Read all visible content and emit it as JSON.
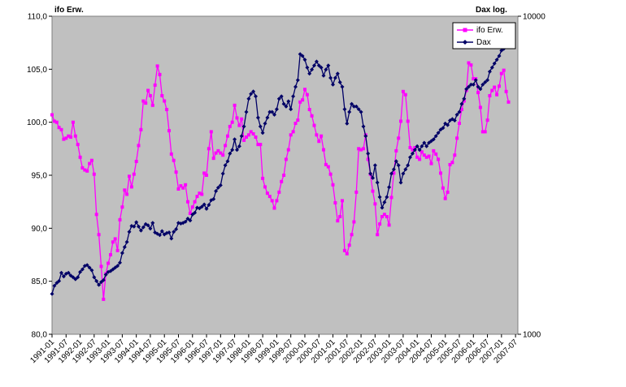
{
  "chart_data": {
    "type": "line",
    "left_axis_title": "ifo Erw.",
    "right_axis_title": "Dax log.",
    "left_ylim": [
      80,
      110
    ],
    "left_ticks": [
      "80,0",
      "85,0",
      "90,0",
      "95,0",
      "100,0",
      "105,0",
      "110,0"
    ],
    "right_ylim": [
      1000,
      10000
    ],
    "right_scale": "log",
    "right_ticks": [
      "1000",
      "10000"
    ],
    "x_tick_labels": [
      "1991-01",
      "1991-07",
      "1992-01",
      "1992-07",
      "1993-01",
      "1993-07",
      "1994-01",
      "1994-07",
      "1995-01",
      "1995-07",
      "1996-01",
      "1996-07",
      "1997-01",
      "1997-07",
      "1998-01",
      "1998-07",
      "1999-01",
      "1999-07",
      "2000-01",
      "2000-07",
      "2001-01",
      "2001-07",
      "2002-01",
      "2002-07",
      "2003-01",
      "2003-07",
      "2004-01",
      "2004-07",
      "2005-01",
      "2005-07",
      "2006-01",
      "2006-07",
      "2007-01",
      "2007-07"
    ],
    "grid": false,
    "legend_position": "top-right",
    "background": "#c0c0c0",
    "series": [
      {
        "name": "ifo Erw.",
        "axis": "left",
        "color": "#ff00ff",
        "marker": "square",
        "start": "1991-01",
        "values": [
          100.7,
          100.1,
          100.0,
          99.5,
          99.3,
          98.4,
          98.5,
          98.7,
          98.6,
          100.0,
          98.7,
          97.9,
          96.7,
          95.7,
          95.5,
          95.4,
          96.1,
          96.4,
          95.1,
          91.3,
          89.4,
          86.4,
          83.3,
          85.7,
          86.7,
          87.5,
          88.7,
          89.0,
          87.9,
          90.8,
          92.0,
          93.6,
          93.2,
          94.9,
          93.9,
          95.1,
          96.3,
          97.8,
          99.3,
          102.0,
          101.8,
          103.0,
          102.5,
          101.6,
          103.5,
          105.3,
          104.5,
          102.5,
          102.0,
          101.2,
          99.2,
          97.0,
          96.4,
          95.3,
          93.7,
          94.0,
          93.8,
          94.1,
          92.5,
          91.4,
          92.0,
          92.5,
          93.0,
          93.3,
          93.2,
          95.2,
          95.0,
          97.5,
          99.1,
          96.6,
          97.1,
          97.3,
          97.1,
          96.9,
          97.8,
          98.7,
          99.6,
          100.0,
          101.6,
          100.4,
          99.7,
          100.3,
          98.3,
          98.6,
          98.8,
          99.1,
          98.9,
          98.6,
          97.9,
          97.9,
          94.7,
          93.9,
          93.3,
          93.0,
          92.6,
          91.9,
          92.6,
          93.4,
          94.4,
          95.0,
          96.5,
          97.4,
          98.8,
          99.1,
          99.9,
          100.2,
          101.9,
          102.1,
          103.1,
          102.6,
          101.2,
          100.6,
          99.7,
          98.8,
          98.2,
          98.7,
          97.4,
          96.0,
          95.8,
          95.1,
          94.1,
          92.4,
          90.7,
          91.1,
          92.6,
          87.9,
          87.6,
          88.4,
          89.4,
          90.6,
          93.4,
          97.5,
          97.4,
          97.5,
          98.8,
          96.5,
          95.1,
          93.5,
          92.3,
          89.4,
          90.4,
          91.1,
          91.3,
          91.1,
          90.3,
          92.9,
          95.2,
          97.3,
          98.5,
          100.1,
          102.9,
          102.6,
          100.1,
          97.6,
          97.4,
          97.6,
          96.7,
          96.5,
          97.2,
          96.9,
          96.7,
          96.8,
          96.1,
          97.3,
          97.0,
          96.5,
          95.2,
          93.8,
          92.8,
          93.4,
          96.0,
          96.2,
          96.9,
          98.5,
          99.9,
          101.2,
          102.0,
          103.0,
          105.6,
          105.4,
          104.1,
          104.1,
          102.8,
          101.4,
          99.1,
          99.1,
          100.2,
          102.5,
          103.0,
          103.3,
          102.6,
          103.4,
          104.6,
          104.9,
          102.9,
          101.9
        ]
      },
      {
        "name": "Dax",
        "axis": "right",
        "color": "#000066",
        "marker": "diamond",
        "start": "1991-01",
        "values": [
          1340,
          1420,
          1450,
          1470,
          1560,
          1520,
          1550,
          1560,
          1530,
          1510,
          1490,
          1510,
          1570,
          1600,
          1640,
          1650,
          1620,
          1590,
          1510,
          1470,
          1430,
          1460,
          1480,
          1540,
          1570,
          1580,
          1600,
          1620,
          1640,
          1680,
          1800,
          1880,
          1950,
          2100,
          2190,
          2180,
          2250,
          2180,
          2120,
          2170,
          2220,
          2200,
          2150,
          2240,
          2090,
          2070,
          2050,
          2110,
          2060,
          2080,
          2090,
          2000,
          2100,
          2140,
          2240,
          2230,
          2240,
          2260,
          2310,
          2280,
          2380,
          2410,
          2500,
          2490,
          2520,
          2560,
          2480,
          2550,
          2640,
          2660,
          2820,
          2890,
          2940,
          3200,
          3400,
          3500,
          3700,
          3800,
          4100,
          3800,
          3900,
          4200,
          4500,
          5000,
          5500,
          5700,
          5800,
          5600,
          4800,
          4500,
          4300,
          4600,
          4800,
          5000,
          5000,
          4900,
          5100,
          5500,
          5600,
          5300,
          5200,
          5400,
          5100,
          5600,
          6000,
          6300,
          7600,
          7500,
          7300,
          6900,
          6600,
          6800,
          7000,
          7200,
          7000,
          6900,
          6500,
          6800,
          7000,
          6400,
          6100,
          6400,
          6600,
          6200,
          6000,
          5100,
          4600,
          5000,
          5300,
          5200,
          5200,
          5100,
          5000,
          4500,
          4200,
          3700,
          3200,
          3100,
          3400,
          3000,
          2700,
          2500,
          2600,
          2700,
          2900,
          3200,
          3300,
          3500,
          3400,
          3000,
          3200,
          3300,
          3400,
          3600,
          3700,
          3800,
          3900,
          3800,
          3900,
          4000,
          3900,
          4000,
          4050,
          4100,
          4200,
          4300,
          4400,
          4450,
          4600,
          4550,
          4700,
          4750,
          4700,
          4900,
          5000,
          5300,
          5500,
          5900,
          6000,
          6100,
          6100,
          6300,
          6000,
          5900,
          6100,
          6200,
          6300,
          6700,
          6900,
          7100,
          7300,
          7500,
          7800,
          7900,
          8000,
          8000
        ]
      }
    ]
  }
}
